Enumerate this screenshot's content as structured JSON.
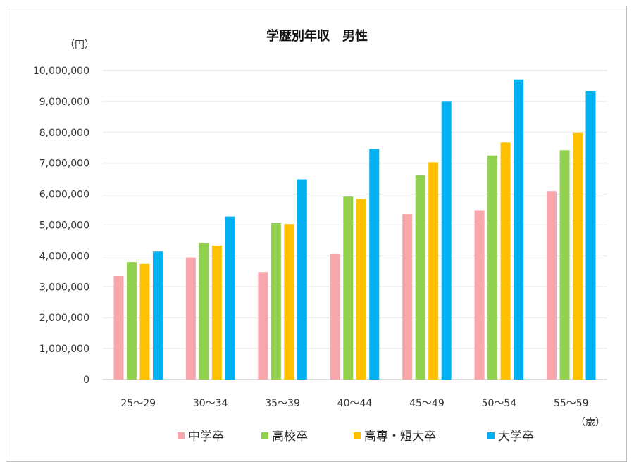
{
  "chart_data": {
    "type": "bar",
    "title": "学歴別年収　男性",
    "y_unit": "（円）",
    "x_unit": "（歳）",
    "ylim": [
      0,
      10000000
    ],
    "y_ticks": [
      "0",
      "1,000,000",
      "2,000,000",
      "3,000,000",
      "4,000,000",
      "5,000,000",
      "6,000,000",
      "7,000,000",
      "8,000,000",
      "9,000,000",
      "10,000,000"
    ],
    "categories": [
      "25～29",
      "30～34",
      "35～39",
      "40～44",
      "45～49",
      "50～54",
      "55～59"
    ],
    "series": [
      {
        "name": "中学卒",
        "color": "#f8a8ac",
        "values": [
          3350000,
          3950000,
          3480000,
          4080000,
          5350000,
          5480000,
          6100000
        ]
      },
      {
        "name": "高校卒",
        "color": "#92d050",
        "values": [
          3800000,
          4420000,
          5060000,
          5920000,
          6610000,
          7250000,
          7420000
        ]
      },
      {
        "name": "高専・短大卒",
        "color": "#ffc000",
        "values": [
          3740000,
          4330000,
          5030000,
          5840000,
          7030000,
          7670000,
          7980000
        ]
      },
      {
        "name": "大学卒",
        "color": "#00b0f0",
        "values": [
          4140000,
          5270000,
          6480000,
          7460000,
          8990000,
          9710000,
          9340000
        ]
      }
    ],
    "grid": true,
    "legend_position": "bottom"
  }
}
